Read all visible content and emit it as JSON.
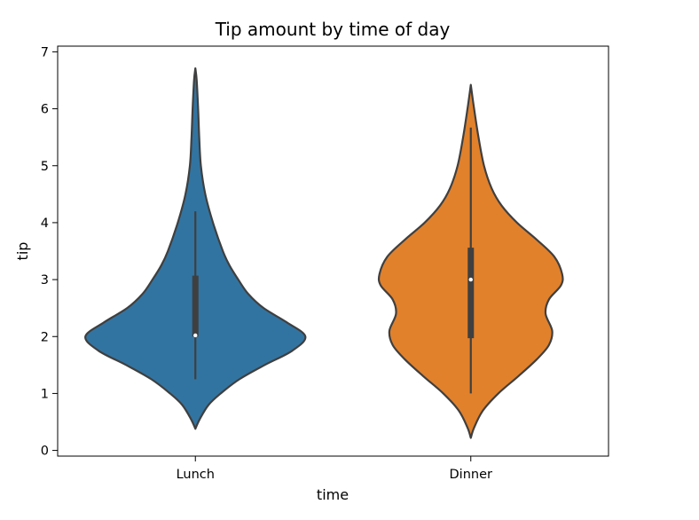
{
  "chart_data": {
    "type": "violin",
    "title": "Tip amount by time of day",
    "xlabel": "time",
    "ylabel": "tip",
    "ylim": [
      -0.1,
      7.1
    ],
    "yticks": [
      0,
      1,
      2,
      3,
      4,
      5,
      6,
      7
    ],
    "categories": [
      "Lunch",
      "Dinner"
    ],
    "colors": [
      "#3274a1",
      "#e1812c"
    ],
    "edge_color": "#3f3f3f",
    "grid": false,
    "series": [
      {
        "name": "Lunch",
        "color": "#3274a1",
        "density_min": 0.38,
        "density_max": 6.71,
        "whisker_low": 1.25,
        "q1": 2.0,
        "median": 2.02,
        "q3": 3.07,
        "whisker_high": 4.2,
        "profile": [
          [
            0.38,
            0.0
          ],
          [
            0.55,
            0.04
          ],
          [
            0.8,
            0.12
          ],
          [
            1.0,
            0.23
          ],
          [
            1.25,
            0.4
          ],
          [
            1.5,
            0.63
          ],
          [
            1.75,
            0.88
          ],
          [
            2.0,
            1.0
          ],
          [
            2.25,
            0.83
          ],
          [
            2.5,
            0.62
          ],
          [
            2.75,
            0.48
          ],
          [
            3.0,
            0.39
          ],
          [
            3.25,
            0.31
          ],
          [
            3.5,
            0.25
          ],
          [
            4.0,
            0.16
          ],
          [
            4.5,
            0.09
          ],
          [
            5.0,
            0.05
          ],
          [
            5.5,
            0.035
          ],
          [
            6.0,
            0.025
          ],
          [
            6.5,
            0.012
          ],
          [
            6.71,
            0.0
          ]
        ]
      },
      {
        "name": "Dinner",
        "color": "#e1812c",
        "density_min": 0.22,
        "density_max": 6.42,
        "whisker_low": 1.0,
        "q1": 1.97,
        "median": 3.0,
        "q3": 3.56,
        "whisker_high": 5.67,
        "profile": [
          [
            0.22,
            0.0
          ],
          [
            0.4,
            0.03
          ],
          [
            0.7,
            0.11
          ],
          [
            1.0,
            0.25
          ],
          [
            1.3,
            0.43
          ],
          [
            1.6,
            0.6
          ],
          [
            1.85,
            0.71
          ],
          [
            2.1,
            0.74
          ],
          [
            2.4,
            0.68
          ],
          [
            2.65,
            0.71
          ],
          [
            2.9,
            0.82
          ],
          [
            3.1,
            0.83
          ],
          [
            3.4,
            0.76
          ],
          [
            3.7,
            0.6
          ],
          [
            4.0,
            0.42
          ],
          [
            4.3,
            0.28
          ],
          [
            4.6,
            0.19
          ],
          [
            5.0,
            0.12
          ],
          [
            5.5,
            0.07
          ],
          [
            6.0,
            0.03
          ],
          [
            6.42,
            0.0
          ]
        ]
      }
    ]
  }
}
